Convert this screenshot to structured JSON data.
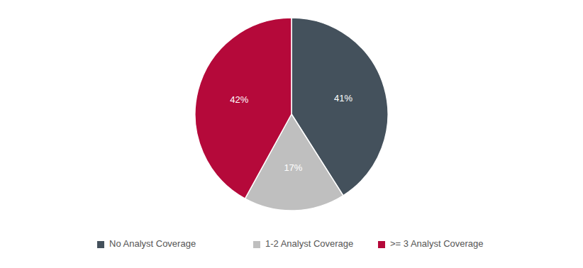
{
  "chart_data": {
    "type": "pie",
    "categories": [
      "No Analyst Coverage",
      "1-2 Analyst Coverage",
      ">= 3 Analyst Coverage"
    ],
    "values": [
      41,
      17,
      42
    ],
    "value_labels": [
      "41%",
      "17%",
      "42%"
    ],
    "colors": [
      "#44515c",
      "#bfbfbf",
      "#b5093a"
    ],
    "data_labels": true,
    "legend": "bottom"
  }
}
